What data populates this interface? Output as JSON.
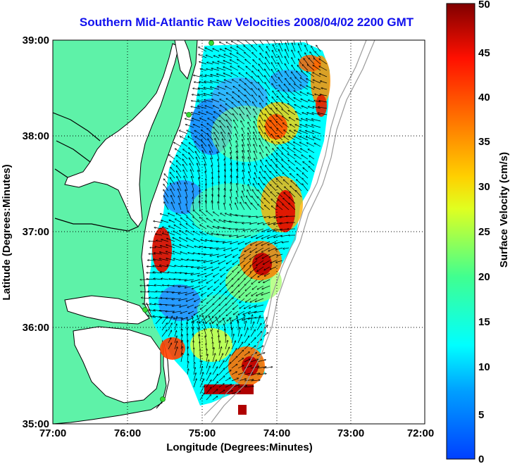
{
  "title": "Southern Mid-Atlantic Raw Velocities 2008/04/02 2200 GMT",
  "map": {
    "xlabel": "Longitude (Degrees:Minutes)",
    "ylabel": "Latitude (Degrees:Minutes)",
    "x_ticks": [
      "77:00",
      "76:00",
      "75:00",
      "74:00",
      "73:00",
      "72:00"
    ],
    "y_ticks": [
      "39:00",
      "38:00",
      "37:00",
      "36:00",
      "35:00"
    ],
    "xlim": [
      -77,
      -72
    ],
    "ylim": [
      35,
      39
    ],
    "grid": true,
    "land_color": "#5ef2a8",
    "coastline_color": "#000000",
    "isobath_color": "#9a9a9a",
    "station_color": "#33dd33"
  },
  "colorbar": {
    "label": "Surface Velocity (cm/s)",
    "ticks": [
      "0",
      "5",
      "10",
      "15",
      "20",
      "25",
      "30",
      "35",
      "40",
      "45",
      "50"
    ],
    "range": [
      0,
      50
    ]
  }
}
